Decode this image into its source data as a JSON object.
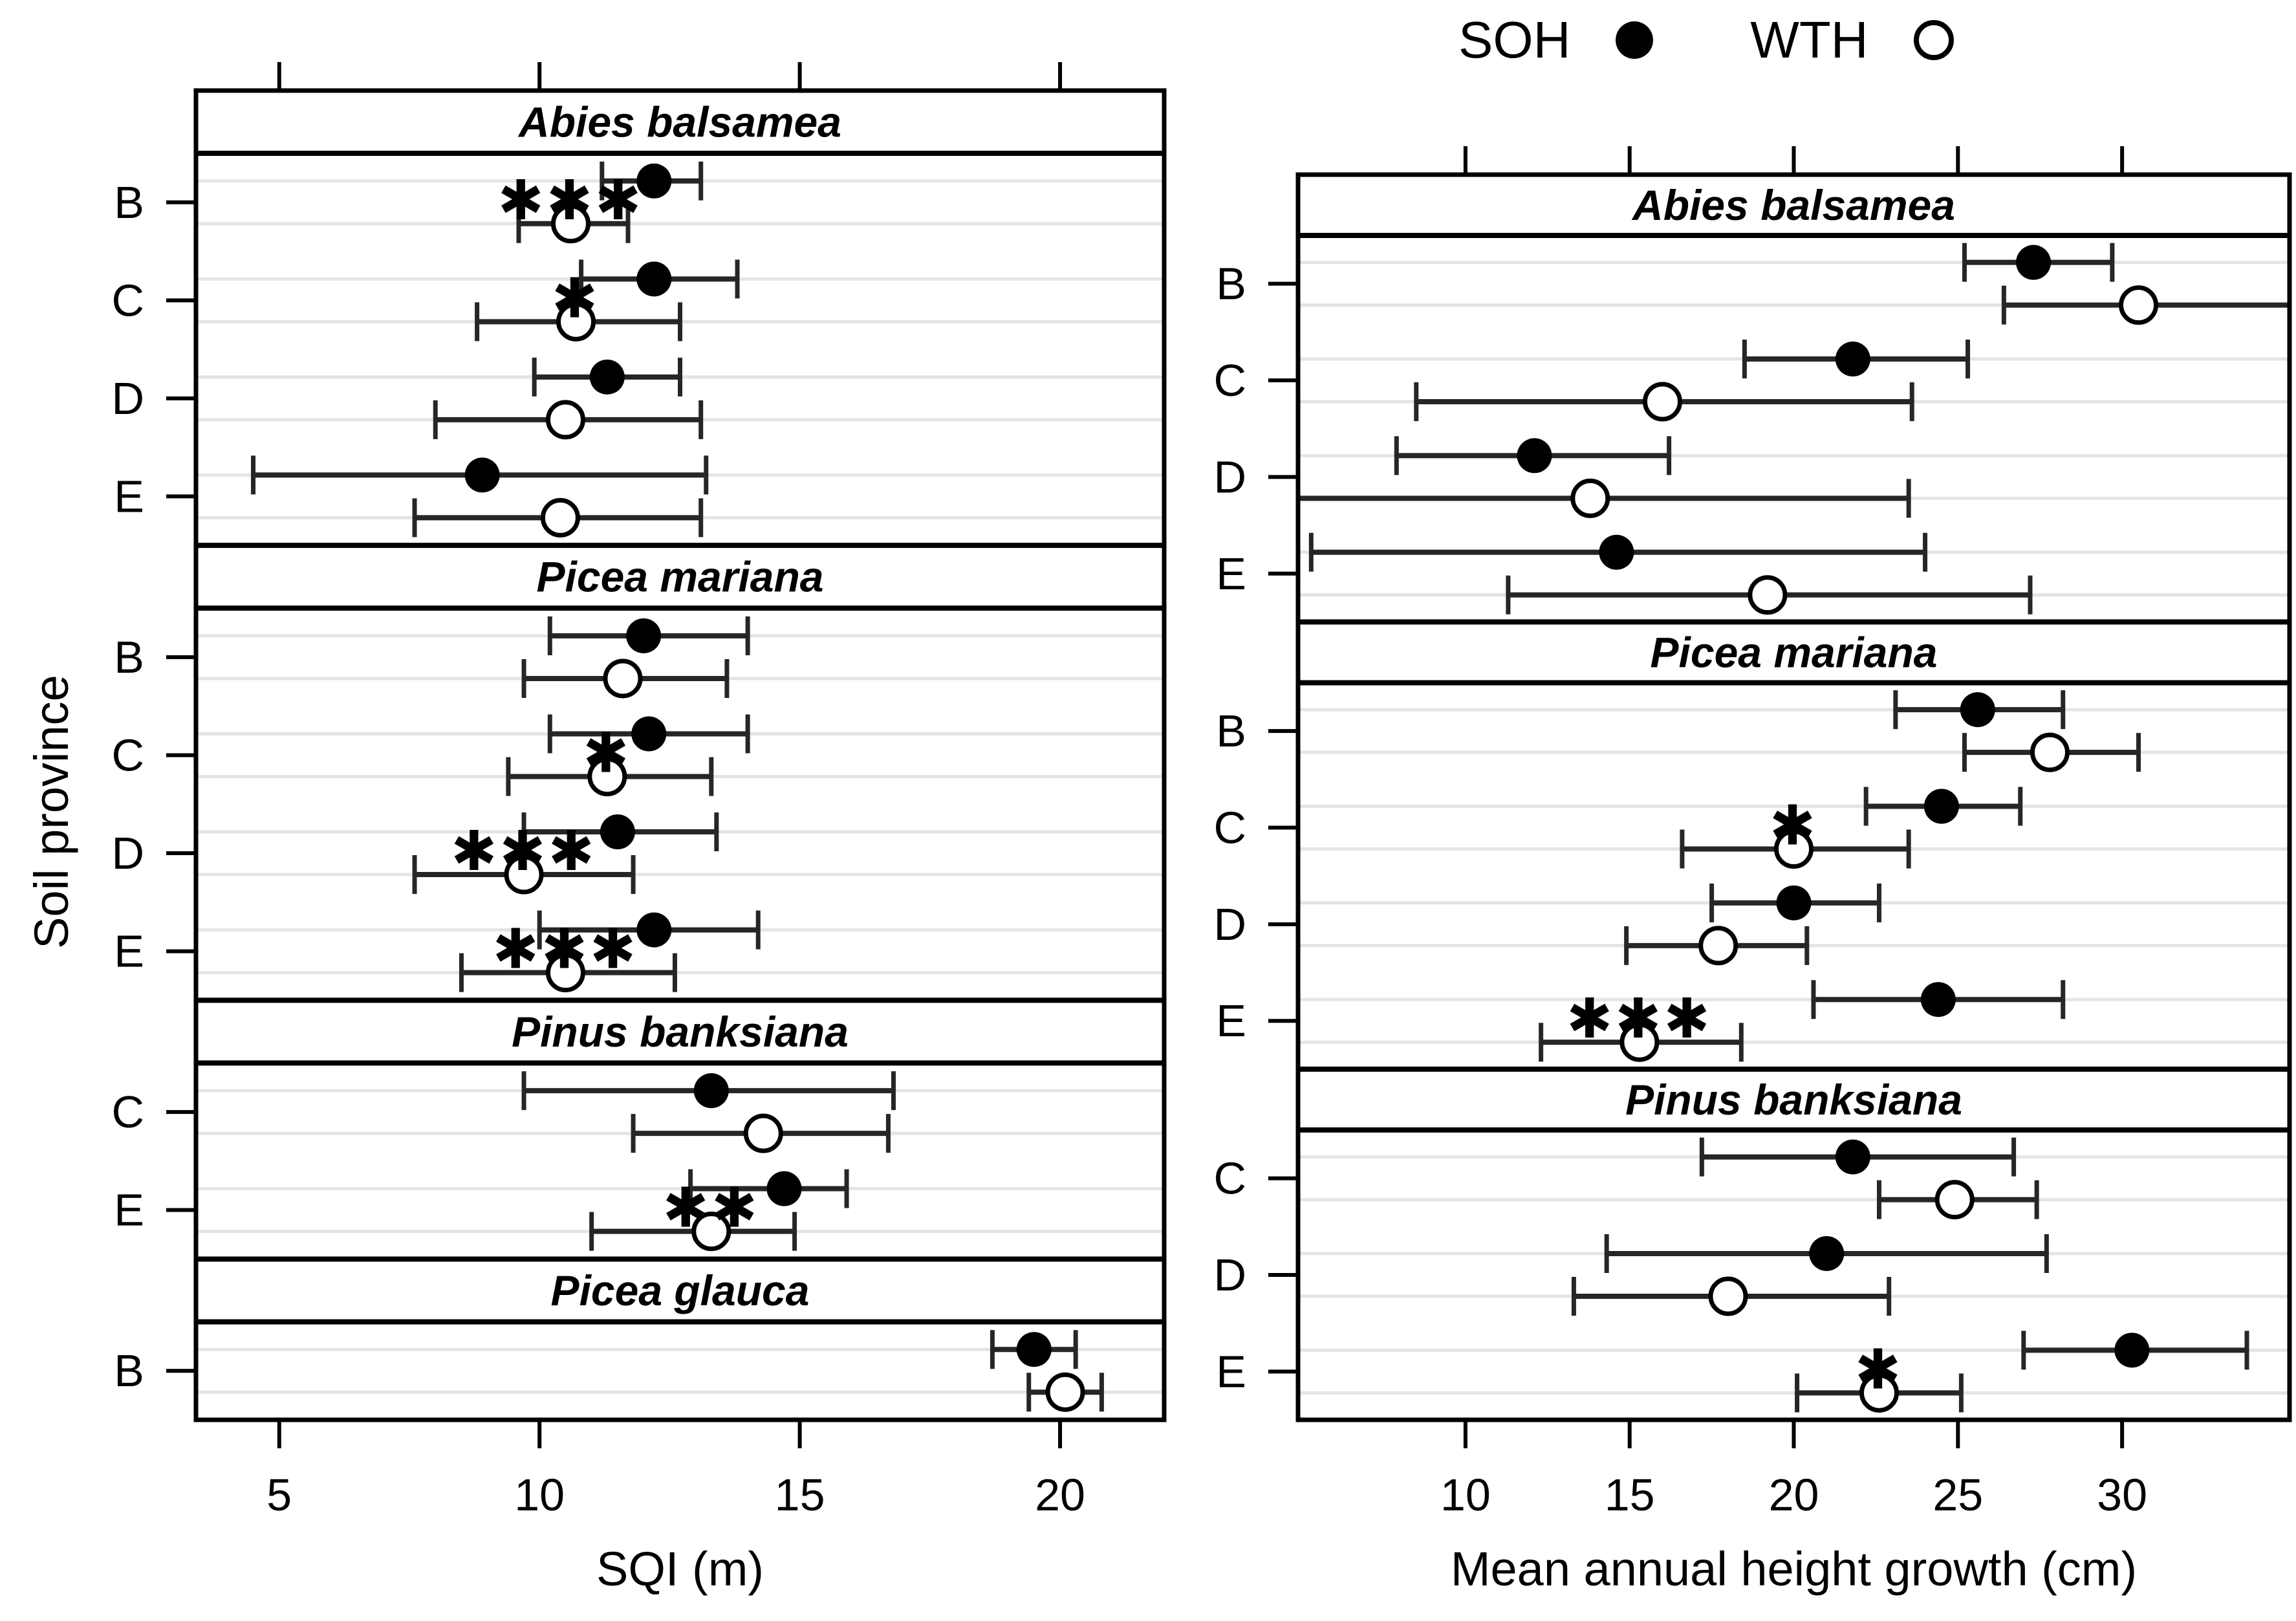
{
  "figure": {
    "ylabel": "Soil province",
    "colors": {
      "marker_soh": "#000000",
      "marker_wth_fill": "#ffffff",
      "error_bar": "#262626",
      "frame": "#000000",
      "grid": "#e4e4e4"
    }
  },
  "legend": {
    "items": [
      {
        "label": "SOH",
        "marker": "filled-circle"
      },
      {
        "label": "WTH",
        "marker": "open-circle"
      }
    ]
  },
  "chart_data": [
    {
      "type": "scatter",
      "subtype": "dot-interval-grouped",
      "xlabel": "SQI (m)",
      "ylabel": "Soil province",
      "xticks": [
        5,
        10,
        15,
        20
      ],
      "xlim": [
        3.4,
        22.0
      ],
      "grid": true,
      "sections": [
        {
          "species": "Abies balsamea",
          "rows": [
            {
              "province": "B",
              "soh": {
                "mean": 12.2,
                "lo": 11.2,
                "hi": 13.1
              },
              "wth": {
                "mean": 10.6,
                "lo": 9.6,
                "hi": 11.7
              },
              "sig": "***"
            },
            {
              "province": "C",
              "soh": {
                "mean": 12.2,
                "lo": 10.8,
                "hi": 13.8
              },
              "wth": {
                "mean": 10.7,
                "lo": 8.8,
                "hi": 12.7
              },
              "sig": "*"
            },
            {
              "province": "D",
              "soh": {
                "mean": 11.3,
                "lo": 9.9,
                "hi": 12.7
              },
              "wth": {
                "mean": 10.5,
                "lo": 8.0,
                "hi": 13.1
              },
              "sig": ""
            },
            {
              "province": "E",
              "soh": {
                "mean": 8.9,
                "lo": 4.5,
                "hi": 13.2
              },
              "wth": {
                "mean": 10.4,
                "lo": 7.6,
                "hi": 13.1
              },
              "sig": ""
            }
          ]
        },
        {
          "species": "Picea mariana",
          "rows": [
            {
              "province": "B",
              "soh": {
                "mean": 12.0,
                "lo": 10.2,
                "hi": 14.0
              },
              "wth": {
                "mean": 11.6,
                "lo": 9.7,
                "hi": 13.6
              },
              "sig": ""
            },
            {
              "province": "C",
              "soh": {
                "mean": 12.1,
                "lo": 10.2,
                "hi": 14.0
              },
              "wth": {
                "mean": 11.3,
                "lo": 9.4,
                "hi": 13.3
              },
              "sig": "*"
            },
            {
              "province": "D",
              "soh": {
                "mean": 11.5,
                "lo": 9.7,
                "hi": 13.4
              },
              "wth": {
                "mean": 9.7,
                "lo": 7.6,
                "hi": 11.8
              },
              "sig": "***"
            },
            {
              "province": "E",
              "soh": {
                "mean": 12.2,
                "lo": 10.0,
                "hi": 14.2
              },
              "wth": {
                "mean": 10.5,
                "lo": 8.5,
                "hi": 12.6
              },
              "sig": "***"
            }
          ]
        },
        {
          "species": "Pinus banksiana",
          "rows": [
            {
              "province": "C",
              "soh": {
                "mean": 13.3,
                "lo": 9.7,
                "hi": 16.8
              },
              "wth": {
                "mean": 14.3,
                "lo": 11.8,
                "hi": 16.7
              },
              "sig": ""
            },
            {
              "province": "E",
              "soh": {
                "mean": 14.7,
                "lo": 12.9,
                "hi": 15.9
              },
              "wth": {
                "mean": 13.3,
                "lo": 11.0,
                "hi": 14.9
              },
              "sig": "**"
            }
          ]
        },
        {
          "species": "Picea glauca",
          "rows": [
            {
              "province": "B",
              "soh": {
                "mean": 19.5,
                "lo": 18.7,
                "hi": 20.3
              },
              "wth": {
                "mean": 20.1,
                "lo": 19.4,
                "hi": 20.8
              },
              "sig": ""
            }
          ]
        }
      ]
    },
    {
      "type": "scatter",
      "subtype": "dot-interval-grouped",
      "xlabel": "Mean annual height growth (cm)",
      "ylabel": "Soil province",
      "xticks": [
        10,
        15,
        20,
        25,
        30
      ],
      "xlim": [
        4.9,
        35.1
      ],
      "grid": true,
      "sections": [
        {
          "species": "Abies balsamea",
          "rows": [
            {
              "province": "B",
              "soh": {
                "mean": 27.3,
                "lo": 25.2,
                "hi": 29.7
              },
              "wth": {
                "mean": 30.5,
                "lo": 26.4,
                "hi": 35.1,
                "hi_cap": false
              },
              "sig": ""
            },
            {
              "province": "C",
              "soh": {
                "mean": 21.8,
                "lo": 18.5,
                "hi": 25.3
              },
              "wth": {
                "mean": 16.0,
                "lo": 8.5,
                "hi": 23.6
              },
              "sig": ""
            },
            {
              "province": "D",
              "soh": {
                "mean": 12.1,
                "lo": 7.9,
                "hi": 16.2
              },
              "wth": {
                "mean": 13.8,
                "lo": 4.9,
                "hi": 23.5,
                "lo_cap": false
              },
              "sig": ""
            },
            {
              "province": "E",
              "soh": {
                "mean": 14.6,
                "lo": 5.3,
                "hi": 24.0
              },
              "wth": {
                "mean": 19.2,
                "lo": 11.3,
                "hi": 27.2
              },
              "sig": ""
            }
          ]
        },
        {
          "species": "Picea mariana",
          "rows": [
            {
              "province": "B",
              "soh": {
                "mean": 25.6,
                "lo": 23.1,
                "hi": 28.2
              },
              "wth": {
                "mean": 27.8,
                "lo": 25.2,
                "hi": 30.5
              },
              "sig": ""
            },
            {
              "province": "C",
              "soh": {
                "mean": 24.5,
                "lo": 22.2,
                "hi": 26.9
              },
              "wth": {
                "mean": 20.0,
                "lo": 16.6,
                "hi": 23.5
              },
              "sig": "*"
            },
            {
              "province": "D",
              "soh": {
                "mean": 20.0,
                "lo": 17.5,
                "hi": 22.6
              },
              "wth": {
                "mean": 17.7,
                "lo": 14.9,
                "hi": 20.4
              },
              "sig": ""
            },
            {
              "province": "E",
              "soh": {
                "mean": 24.4,
                "lo": 20.6,
                "hi": 28.2
              },
              "wth": {
                "mean": 15.3,
                "lo": 12.3,
                "hi": 18.4
              },
              "sig": "***"
            }
          ]
        },
        {
          "species": "Pinus banksiana",
          "rows": [
            {
              "province": "C",
              "soh": {
                "mean": 21.8,
                "lo": 17.2,
                "hi": 26.7
              },
              "wth": {
                "mean": 24.9,
                "lo": 22.6,
                "hi": 27.4
              },
              "sig": ""
            },
            {
              "province": "D",
              "soh": {
                "mean": 21.0,
                "lo": 14.3,
                "hi": 27.7
              },
              "wth": {
                "mean": 18.0,
                "lo": 13.3,
                "hi": 22.9
              },
              "sig": ""
            },
            {
              "province": "E",
              "soh": {
                "mean": 30.3,
                "lo": 27.0,
                "hi": 33.8
              },
              "wth": {
                "mean": 22.6,
                "lo": 20.1,
                "hi": 25.1
              },
              "sig": "*"
            }
          ]
        }
      ]
    }
  ]
}
